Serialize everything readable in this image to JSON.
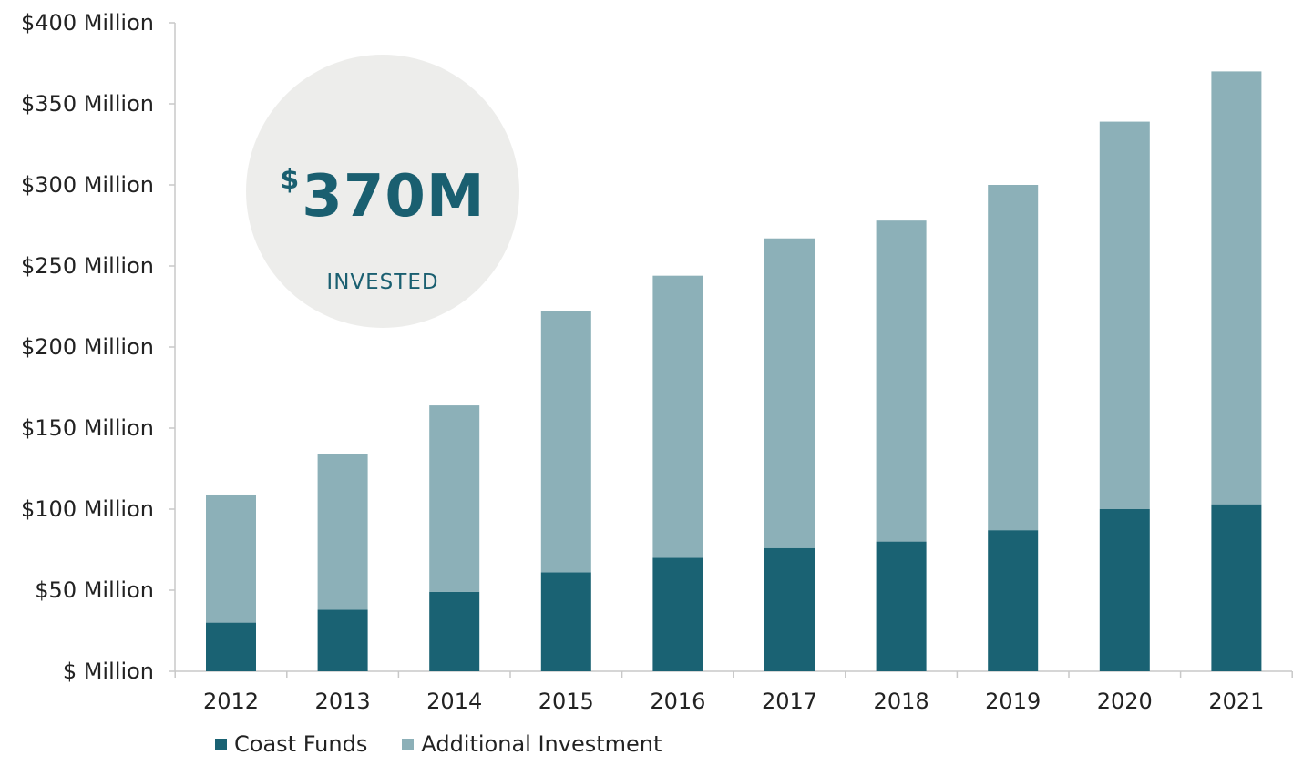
{
  "colors": {
    "coast_funds": "#1a6273",
    "additional_investment": "#8cb0b8",
    "axis": "#c8c8c8",
    "callout_bg": "#ededeb",
    "callout_text": "#1a5f70"
  },
  "callout": {
    "currency": "$",
    "amount": "370M",
    "label": "INVESTED"
  },
  "legend": {
    "coast_funds": "Coast Funds",
    "additional_investment": "Additional Investment"
  },
  "chart_data": {
    "type": "bar",
    "stacked": true,
    "categories": [
      "2012",
      "2013",
      "2014",
      "2015",
      "2016",
      "2017",
      "2018",
      "2019",
      "2020",
      "2021"
    ],
    "series": [
      {
        "name": "Coast Funds",
        "values": [
          30,
          38,
          49,
          61,
          70,
          76,
          80,
          87,
          100,
          103
        ]
      },
      {
        "name": "Additional Investment",
        "values": [
          79,
          96,
          115,
          161,
          174,
          191,
          198,
          213,
          239,
          267
        ]
      }
    ],
    "y_tick_values": [
      0,
      50,
      100,
      150,
      200,
      250,
      300,
      350,
      400
    ],
    "y_tick_labels": [
      "$ Million",
      "$50 Million",
      "$100 Million",
      "$150 Million",
      "$200 Million",
      "$250 Million",
      "$300 Million",
      "$350 Million",
      "$400 Million"
    ],
    "ylim": [
      0,
      400
    ],
    "grid": false,
    "legend_position": "bottom-left"
  }
}
